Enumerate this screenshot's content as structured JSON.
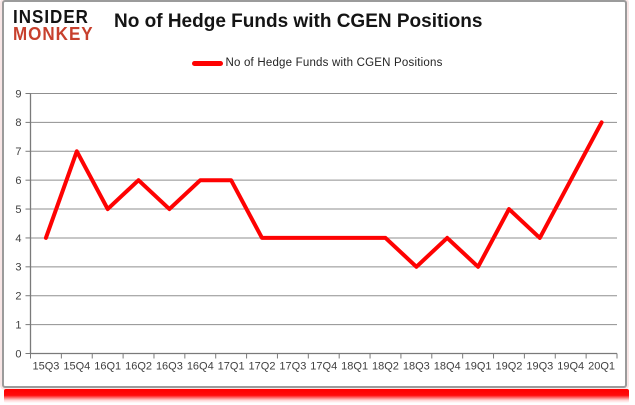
{
  "brand": {
    "line1": "INSIDER",
    "line2": "MONKEY",
    "monkey_color": "#c7402d",
    "insider_color": "#131313"
  },
  "header": {
    "title": "No of Hedge Funds with CGEN Positions"
  },
  "legend": {
    "label": "No of Hedge Funds with CGEN Positions",
    "swatch_color": "#fe0202"
  },
  "colors": {
    "series_line": "#fe0202",
    "gridline": "#8f8f8f",
    "axis": "#7a7a7a",
    "tick_label": "#404040",
    "frame_border": "#9b9b9b",
    "bottom_bar": "#ff0000"
  },
  "chart_data": {
    "type": "line",
    "title": "No of Hedge Funds with CGEN Positions",
    "categories": [
      "15Q3",
      "15Q4",
      "16Q1",
      "16Q2",
      "16Q3",
      "16Q4",
      "17Q1",
      "17Q2",
      "17Q3",
      "17Q4",
      "18Q1",
      "18Q2",
      "18Q3",
      "18Q4",
      "19Q1",
      "19Q2",
      "19Q3",
      "19Q4",
      "20Q1"
    ],
    "series": [
      {
        "name": "No of Hedge Funds with CGEN Positions",
        "values": [
          4,
          7,
          5,
          6,
          5,
          6,
          6,
          4,
          4,
          4,
          4,
          4,
          3,
          4,
          3,
          5,
          4,
          6,
          8
        ],
        "color": "#fe0202"
      }
    ],
    "xlabel": "",
    "ylabel": "",
    "ylim": [
      0,
      9
    ],
    "yticks": [
      0,
      1,
      2,
      3,
      4,
      5,
      6,
      7,
      8,
      9
    ],
    "grid": "horizontal",
    "legend_position": "top-center"
  }
}
